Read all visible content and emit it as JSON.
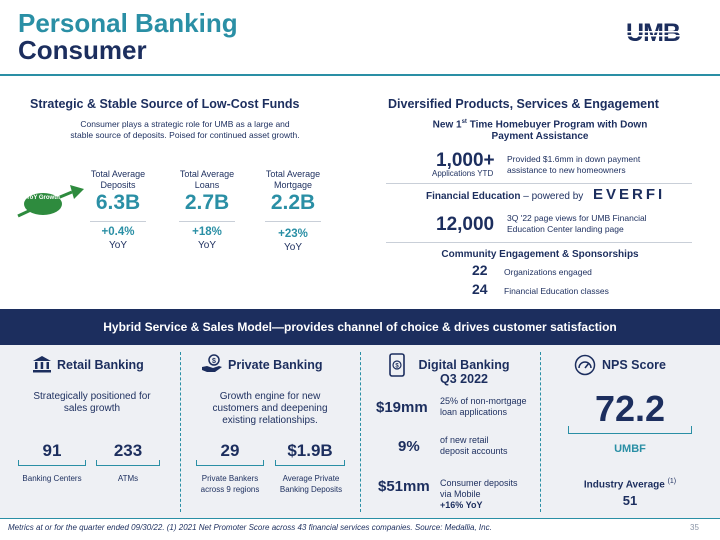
{
  "header": {
    "title_line1": "Personal Banking",
    "title_line2": "Consumer",
    "logo_text": "UMB"
  },
  "left": {
    "heading": "Strategic & Stable Source of Low-Cost Funds",
    "subtitle_line1": "Consumer plays a strategic role for UMB as a large and",
    "subtitle_line2": "stable source of deposits. Poised for continued asset growth.",
    "arrow_badge": "YoY Growth",
    "metrics": [
      {
        "label_line1": "Total Average",
        "label_line2": "Deposits",
        "value": "6.3B",
        "yoy_value": "+0.4%",
        "yoy": "YoY"
      },
      {
        "label_line1": "Total Average",
        "label_line2": "Loans",
        "value": "2.7B",
        "yoy_value": "+18%",
        "yoy": "YoY"
      },
      {
        "label_line1": "Total Average",
        "label_line2": "Mortgage",
        "value": "2.2B",
        "yoy_value": "+23%",
        "yoy": "YoY"
      }
    ]
  },
  "right": {
    "heading": "Diversified Products, Services & Engagement",
    "homebuyer_line1": "New 1",
    "homebuyer_sup": "st",
    "homebuyer_line1b": " Time Homebuyer Program with Down",
    "homebuyer_line2": "Payment Assistance",
    "apps_value": "1,000+",
    "apps_label": "Applications YTD",
    "apps_desc_line1": "Provided $1.6mm in down payment",
    "apps_desc_line2": "assistance to new homeowners",
    "fin_ed_bold": "Financial Education",
    "fin_ed_rest": " – powered by",
    "everfi_logo": "EVERFI",
    "views_value": "12,000",
    "views_desc_line1": "3Q '22 page views for UMB Financial",
    "views_desc_line2": "Education Center landing page",
    "community_heading": "Community Engagement & Sponsorships",
    "community": [
      {
        "value": "22",
        "desc": "Organizations engaged"
      },
      {
        "value": "24",
        "desc": "Financial Education classes"
      }
    ]
  },
  "banner": "Hybrid Service & Sales Model—provides channel of choice & drives customer satisfaction",
  "retail": {
    "heading": "Retail Banking",
    "desc_line1": "Strategically positioned for",
    "desc_line2": "sales growth",
    "stats": [
      {
        "value": "91",
        "label": "Banking Centers"
      },
      {
        "value": "233",
        "label": "ATMs"
      }
    ]
  },
  "private": {
    "heading": "Private Banking",
    "desc_line1": "Growth engine for new",
    "desc_line2": "customers and deepening",
    "desc_line3": "existing relationships.",
    "stats": [
      {
        "value": "29",
        "label_line1": "Private Bankers",
        "label_line2": "across 9 regions"
      },
      {
        "value": "$1.9B",
        "label_line1": "Average Private",
        "label_line2": "Banking Deposits"
      }
    ]
  },
  "digital": {
    "heading_line1": "Digital Banking",
    "heading_line2": "Q3 2022",
    "rows": [
      {
        "value": "$19mm",
        "desc_line1": "25% of non-mortgage",
        "desc_line2": "loan applications"
      },
      {
        "value": "9%",
        "desc_line1": "of new retail",
        "desc_line2": "deposit accounts"
      },
      {
        "value": "$51mm",
        "desc_line1": "Consumer deposits",
        "desc_line2": "via Mobile",
        "desc_line3": "+16% YoY"
      }
    ]
  },
  "nps": {
    "heading": "NPS Score",
    "score": "72.2",
    "label": "UMBF",
    "industry_label": "Industry Average",
    "industry_sup": "(1)",
    "industry_value": "51"
  },
  "footer": {
    "note": "Metrics at or for the quarter ended 09/30/22. (1) 2021 Net Promoter Score across 43 financial services companies. Source: Medallia, Inc.",
    "page": "35"
  },
  "colors": {
    "navy": "#1c2e5e",
    "teal": "#2a8fa5",
    "green": "#2e8b3e"
  }
}
